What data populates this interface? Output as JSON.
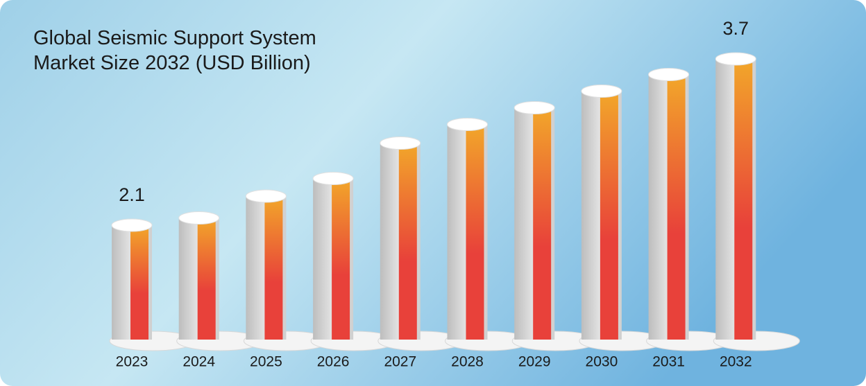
{
  "chart_data": {
    "type": "bar",
    "title": "Global Seismic Support System Market Size 2032 (USD Billion)",
    "categories": [
      "2023",
      "2024",
      "2025",
      "2026",
      "2027",
      "2028",
      "2029",
      "2030",
      "2031",
      "2032"
    ],
    "values": [
      2.1,
      2.17,
      2.38,
      2.55,
      2.89,
      3.07,
      3.23,
      3.39,
      3.55,
      3.7
    ],
    "value_labels": [
      "2.1",
      null,
      null,
      null,
      null,
      null,
      null,
      null,
      null,
      "3.7"
    ],
    "color": "#e8413a",
    "ylim": [
      1,
      3.8
    ]
  }
}
